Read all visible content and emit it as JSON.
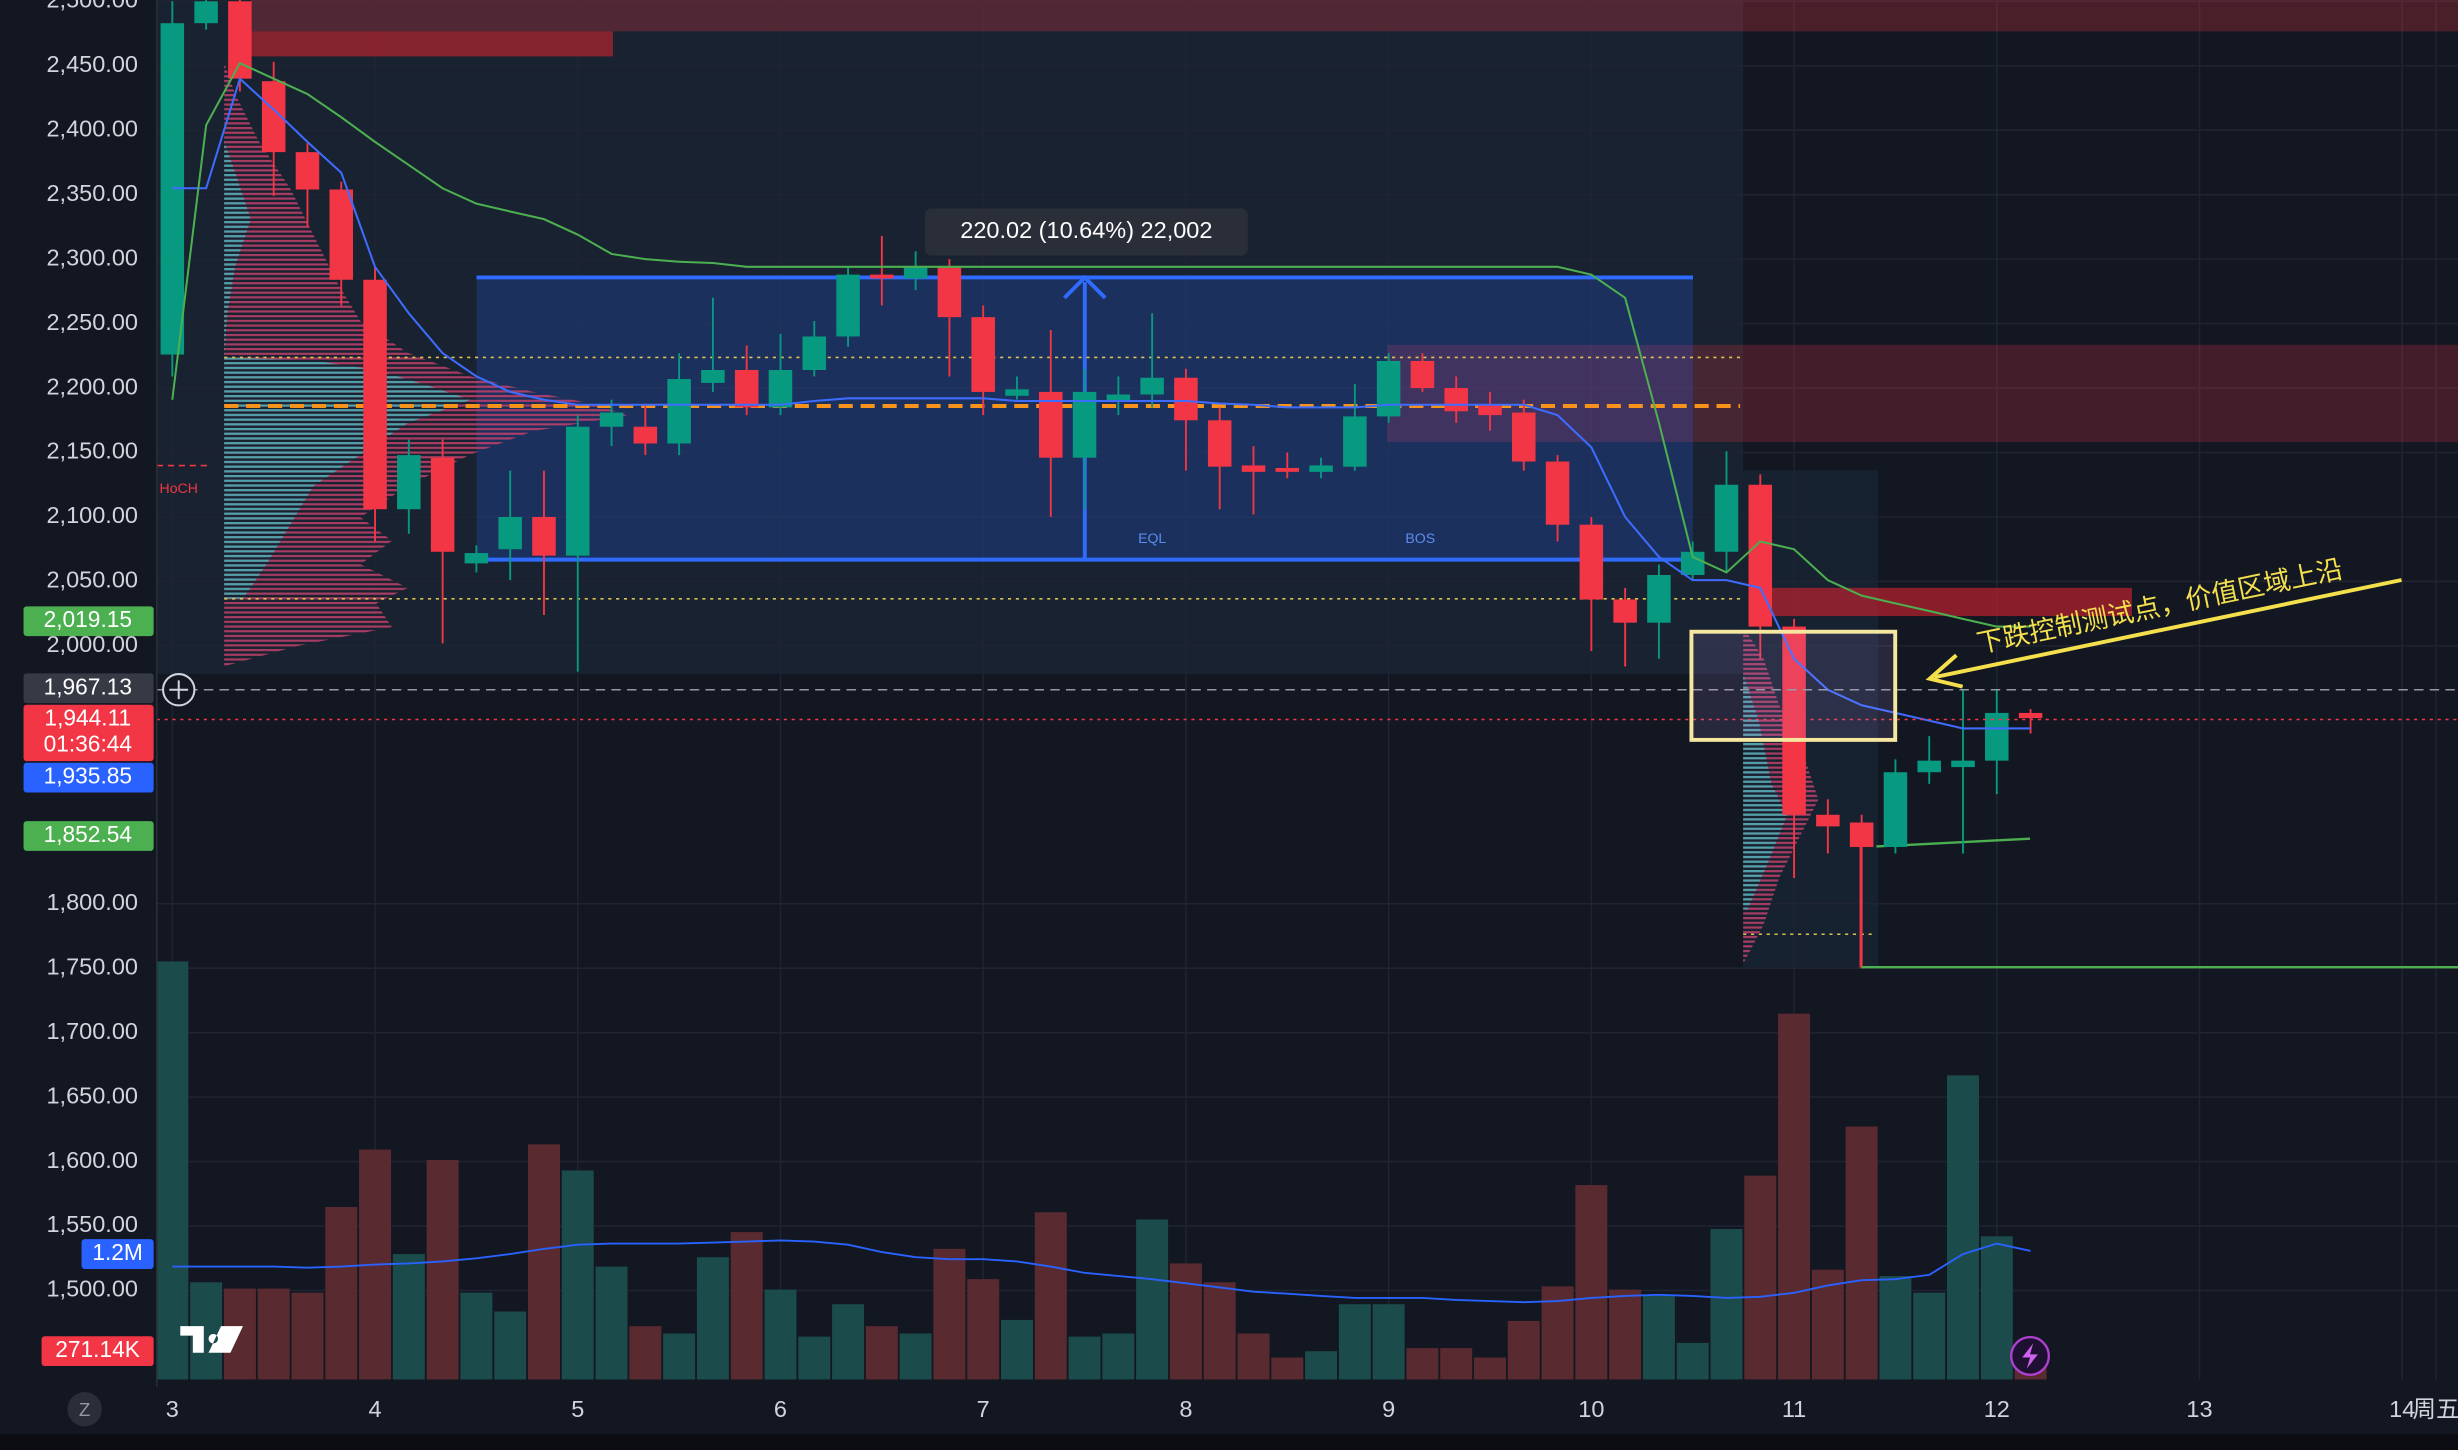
{
  "chart_data": {
    "type": "candlestick",
    "up_color": "#089981",
    "down_color": "#f23645",
    "volume_up_color": "#1b4b4b",
    "volume_down_color": "#5a2a31",
    "grid": true,
    "xlim": [
      -0.46,
      67.65
    ],
    "xticks": [
      {
        "value": 0,
        "label": "3"
      },
      {
        "value": 6,
        "label": "4"
      },
      {
        "value": 12,
        "label": "5"
      },
      {
        "value": 18,
        "label": "6"
      },
      {
        "value": 24,
        "label": "7"
      },
      {
        "value": 30,
        "label": "8"
      },
      {
        "value": 36,
        "label": "9"
      },
      {
        "value": 42,
        "label": "10"
      },
      {
        "value": 48,
        "label": "11"
      },
      {
        "value": 54,
        "label": "12"
      },
      {
        "value": 60,
        "label": "13"
      },
      {
        "value": 66,
        "label": "14"
      },
      {
        "value": 67,
        "label": "周五"
      }
    ],
    "ylim": [
      1431,
      2501
    ],
    "yticks": [
      {
        "value": 2500,
        "label": "2,500.00"
      },
      {
        "value": 2450,
        "label": "2,450.00"
      },
      {
        "value": 2400,
        "label": "2,400.00"
      },
      {
        "value": 2350,
        "label": "2,350.00"
      },
      {
        "value": 2300,
        "label": "2,300.00"
      },
      {
        "value": 2250,
        "label": "2,250.00"
      },
      {
        "value": 2200,
        "label": "2,200.00"
      },
      {
        "value": 2150,
        "label": "2,150.00"
      },
      {
        "value": 2100,
        "label": "2,100.00"
      },
      {
        "value": 2050,
        "label": "2,050.00"
      },
      {
        "value": 2000,
        "label": "2,000.00"
      },
      {
        "value": 1800,
        "label": "1,800.00"
      },
      {
        "value": 1750,
        "label": "1,750.00"
      },
      {
        "value": 1700,
        "label": "1,700.00"
      },
      {
        "value": 1650,
        "label": "1,650.00"
      },
      {
        "value": 1600,
        "label": "1,600.00"
      },
      {
        "value": 1550,
        "label": "1,550.00"
      },
      {
        "value": 1500,
        "label": "1,500.00"
      }
    ],
    "y2lim": [
      0,
      13200000
    ],
    "open": [
      2226,
      2483,
      2500,
      2438,
      2383,
      2354,
      2284,
      2106,
      2146,
      2064,
      2075,
      2100,
      2070,
      2170,
      2170,
      2157,
      2204,
      2214,
      2185,
      2214,
      2240,
      2288,
      2285,
      2294,
      2255,
      2194,
      2197,
      2146,
      2190,
      2195,
      2208,
      2175,
      2140,
      2138,
      2135,
      2139,
      2178,
      2221,
      2200,
      2187,
      2181,
      2143,
      2094,
      2036,
      2018,
      2055,
      2073,
      2125,
      2015,
      1869,
      1863,
      1844,
      1902,
      1906,
      1911,
      1948
    ],
    "high": [
      2500,
      2505,
      2505,
      2453,
      2390,
      2360,
      2294,
      2160,
      2160,
      2078,
      2136,
      2136,
      2179,
      2191,
      2188,
      2227,
      2270,
      2233,
      2242,
      2252,
      2294,
      2318,
      2306,
      2300,
      2264,
      2209,
      2245,
      2215,
      2209,
      2258,
      2215,
      2185,
      2155,
      2150,
      2146,
      2203,
      2227,
      2227,
      2209,
      2197,
      2191,
      2148,
      2100,
      2045,
      2063,
      2081,
      2151,
      2133,
      2021,
      1881,
      1869,
      1912,
      1930,
      1966,
      1966,
      1951
    ],
    "low": [
      2209,
      2478,
      2430,
      2349,
      2325,
      2264,
      2081,
      2087,
      2002,
      2057,
      2051,
      2024,
      1980,
      2155,
      2148,
      2148,
      2197,
      2179,
      2179,
      2209,
      2232,
      2264,
      2276,
      2209,
      2179,
      2191,
      2100,
      2106,
      2179,
      2185,
      2136,
      2106,
      2102,
      2130,
      2130,
      2136,
      2173,
      2197,
      2173,
      2167,
      2136,
      2081,
      1996,
      1984,
      1990,
      2051,
      2057,
      1990,
      1820,
      1839,
      1751,
      1839,
      1893,
      1839,
      1885,
      1932
    ],
    "close": [
      2483,
      2500,
      2440,
      2383,
      2354,
      2284,
      2106,
      2148,
      2073,
      2072,
      2100,
      2070,
      2170,
      2181,
      2157,
      2207,
      2214,
      2185,
      2214,
      2240,
      2288,
      2285,
      2294,
      2255,
      2197,
      2199,
      2146,
      2197,
      2195,
      2208,
      2175,
      2139,
      2135,
      2135,
      2140,
      2178,
      2221,
      2200,
      2182,
      2179,
      2143,
      2094,
      2036,
      2018,
      2055,
      2073,
      2125,
      2015,
      1869,
      1860,
      1844,
      1902,
      1911,
      1911,
      1948,
      1944
    ],
    "volume": [
      4000000,
      930000,
      870000,
      870000,
      830000,
      1650000,
      2200000,
      1200000,
      2100000,
      830000,
      650000,
      2250000,
      2000000,
      1080000,
      510000,
      440000,
      1170000,
      1410000,
      860000,
      410000,
      720000,
      510000,
      440000,
      1250000,
      960000,
      570000,
      1600000,
      410000,
      440000,
      1530000,
      1110000,
      930000,
      440000,
      210000,
      270000,
      720000,
      720000,
      300000,
      300000,
      210000,
      560000,
      890000,
      1860000,
      860000,
      800000,
      350000,
      1440000,
      1950000,
      3500000,
      1050000,
      2420000,
      990000,
      830000,
      2910000,
      1370000,
      271140
    ],
    "volume_ma": {
      "color": "#2962ff",
      "values": [
        1080000,
        1080000,
        1080000,
        1080000,
        1070000,
        1080000,
        1100000,
        1110000,
        1130000,
        1160000,
        1200000,
        1250000,
        1290000,
        1300000,
        1300000,
        1300000,
        1310000,
        1320000,
        1330000,
        1320000,
        1290000,
        1220000,
        1170000,
        1150000,
        1150000,
        1130000,
        1080000,
        1020000,
        990000,
        960000,
        920000,
        880000,
        840000,
        820000,
        800000,
        780000,
        780000,
        780000,
        760000,
        750000,
        740000,
        750000,
        780000,
        800000,
        810000,
        800000,
        780000,
        790000,
        830000,
        900000,
        950000,
        960000,
        1000000,
        1200000,
        1300000,
        1230000
      ]
    },
    "lines": [
      {
        "color": "#3d6cff",
        "values": [
          2355,
          2355,
          2440,
          2416,
          2391,
          2367,
          2294,
          2258,
          2227,
          2209,
          2197,
          2191,
          2187,
          2187,
          2187,
          2187,
          2187,
          2187,
          2187,
          2190,
          2192,
          2192,
          2192,
          2192,
          2192,
          2190,
          2190,
          2190,
          2190,
          2190,
          2190,
          2188,
          2187,
          2185,
          2185,
          2185,
          2187,
          2187,
          2187,
          2187,
          2187,
          2179,
          2154,
          2100,
          2069,
          2051,
          2051,
          2045,
          1990,
          1966,
          1954,
          1948,
          1942,
          1936,
          1936,
          1936
        ]
      },
      {
        "color": "#4caf50",
        "values": [
          2191,
          2404,
          2452,
          2440,
          2428,
          2410,
          2391,
          2373,
          2355,
          2343,
          2337,
          2331,
          2319,
          2304,
          2300,
          2298,
          2297,
          2294,
          2294,
          2294,
          2294,
          2294,
          2294,
          2294,
          2294,
          2294,
          2294,
          2294,
          2294,
          2294,
          2294,
          2294,
          2294,
          2294,
          2294,
          2294,
          2294,
          2294,
          2294,
          2294,
          2294,
          2294,
          2288,
          2270,
          2173,
          2069,
          2057,
          2081,
          2075,
          2051,
          2039,
          2033,
          2027,
          2021,
          2015,
          2015
        ]
      }
    ],
    "price_tags": [
      {
        "value": 2019.15,
        "label": "2,019.15",
        "color": "#4caf50"
      },
      {
        "value": 1967.13,
        "label": "1,967.13",
        "color": "#363a45"
      },
      {
        "value": 1944.11,
        "label": "1,944.11",
        "color": "#f23645",
        "countdown": "01:36:44"
      },
      {
        "value": 1935.85,
        "label": "1,935.85",
        "color": "#2962ff"
      },
      {
        "value": 1852.54,
        "label": "1,852.54",
        "color": "#4caf50"
      }
    ],
    "volume_tags": [
      {
        "value": 1200000,
        "label": "1.2M",
        "color": "#2962ff"
      },
      {
        "value": 271140,
        "label": "271.14K",
        "color": "#f23645"
      }
    ],
    "annotations": {
      "measure": "220.02 (10.64%) 22,002",
      "hoch": "HoCH",
      "eql": "EQL",
      "bos": "BOS",
      "note": "下跌控制测试点，价值区域上沿"
    },
    "toolbar": {
      "z_button": "Z"
    }
  }
}
